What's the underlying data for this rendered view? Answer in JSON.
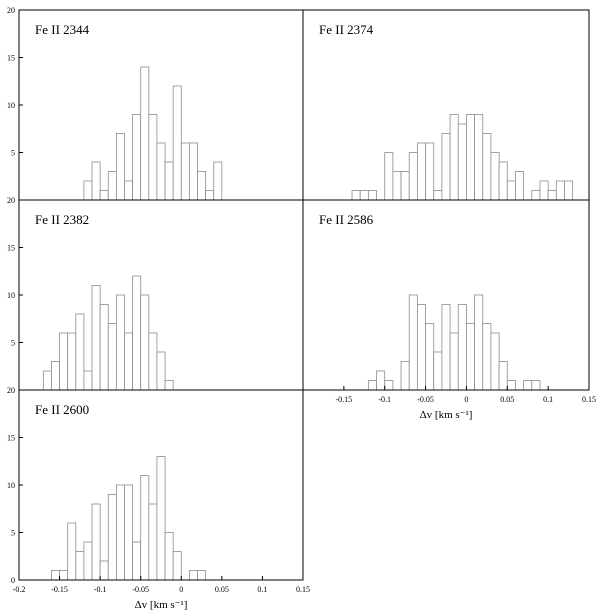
{
  "chart_data": [
    {
      "type": "histogram",
      "title": "Fe II 2344",
      "color": "#8c8c8c",
      "bins": [
        -0.12,
        -0.11,
        -0.1,
        -0.09,
        -0.08,
        -0.07,
        -0.06,
        -0.05,
        -0.04,
        -0.03,
        -0.02,
        -0.01,
        0,
        0.01,
        0.02,
        0.03,
        0.04,
        0.05
      ],
      "values": [
        2,
        4,
        1,
        3,
        7,
        2,
        9,
        14,
        9,
        6,
        4,
        12,
        6,
        6,
        3,
        1,
        4
      ],
      "xlim": [
        -0.2,
        0.15
      ],
      "ylim": [
        0,
        20
      ],
      "yticks": [
        5,
        10,
        15,
        20
      ]
    },
    {
      "type": "histogram",
      "title": "Fe II 2374",
      "color": "#8c8c8c",
      "bins": [
        -0.14,
        -0.13,
        -0.12,
        -0.11,
        -0.1,
        -0.09,
        -0.08,
        -0.07,
        -0.06,
        -0.05,
        -0.04,
        -0.03,
        -0.02,
        -0.01,
        0,
        0.01,
        0.02,
        0.03,
        0.04,
        0.05,
        0.06,
        0.07,
        0.08,
        0.09,
        0.1,
        0.11,
        0.12,
        0.13
      ],
      "values": [
        1,
        1,
        1,
        0,
        5,
        3,
        3,
        5,
        6,
        6,
        1,
        7,
        9,
        8,
        9,
        9,
        7,
        5,
        4,
        2,
        3,
        0,
        1,
        2,
        1,
        2,
        2
      ],
      "xlim": [
        -0.2,
        0.15
      ],
      "ylim": [
        0,
        20
      ]
    },
    {
      "type": "histogram",
      "title": "Fe II 2382",
      "color": "#8c8c8c",
      "bins": [
        -0.17,
        -0.16,
        -0.15,
        -0.14,
        -0.13,
        -0.12,
        -0.11,
        -0.1,
        -0.09,
        -0.08,
        -0.07,
        -0.06,
        -0.05,
        -0.04,
        -0.03,
        -0.02,
        -0.01
      ],
      "values": [
        2,
        3,
        6,
        6,
        8,
        2,
        11,
        9,
        7,
        10,
        6,
        12,
        10,
        6,
        4,
        1
      ],
      "xlim": [
        -0.2,
        0.15
      ],
      "ylim": [
        0,
        20
      ],
      "yticks": [
        5,
        10,
        15,
        20
      ]
    },
    {
      "type": "histogram",
      "title": "Fe II 2586",
      "color": "#8c8c8c",
      "bins": [
        -0.12,
        -0.11,
        -0.1,
        -0.09,
        -0.08,
        -0.07,
        -0.06,
        -0.05,
        -0.04,
        -0.03,
        -0.02,
        -0.01,
        0,
        0.01,
        0.02,
        0.03,
        0.04,
        0.05,
        0.06,
        0.07,
        0.08,
        0.09
      ],
      "values": [
        1,
        2,
        1,
        0,
        3,
        10,
        9,
        7,
        4,
        9,
        6,
        9,
        7,
        10,
        7,
        6,
        3,
        1,
        0,
        1,
        1
      ],
      "xlim": [
        -0.2,
        0.15
      ],
      "ylim": [
        0,
        20
      ],
      "xticks": [
        -0.15,
        -0.1,
        -0.05,
        0,
        0.05,
        0.1,
        0.15
      ],
      "xlabel": "Δv [km s⁻¹]"
    },
    {
      "type": "histogram",
      "title": "Fe II 2600",
      "color": "#8c8c8c",
      "bins": [
        -0.16,
        -0.15,
        -0.14,
        -0.13,
        -0.12,
        -0.11,
        -0.1,
        -0.09,
        -0.08,
        -0.07,
        -0.06,
        -0.05,
        -0.04,
        -0.03,
        -0.02,
        -0.01,
        0,
        0.01,
        0.02,
        0.03
      ],
      "values": [
        1,
        1,
        6,
        3,
        4,
        8,
        2,
        9,
        10,
        10,
        4,
        11,
        8,
        13,
        5,
        3,
        0,
        1,
        1
      ],
      "xlim": [
        -0.2,
        0.15
      ],
      "ylim": [
        0,
        20
      ],
      "yticks": [
        0,
        5,
        10,
        15,
        20
      ],
      "xticks": [
        -0.2,
        -0.15,
        -0.1,
        -0.05,
        0,
        0.05,
        0.1,
        0.15
      ],
      "xlabel": "Δv [km s⁻¹]"
    }
  ]
}
